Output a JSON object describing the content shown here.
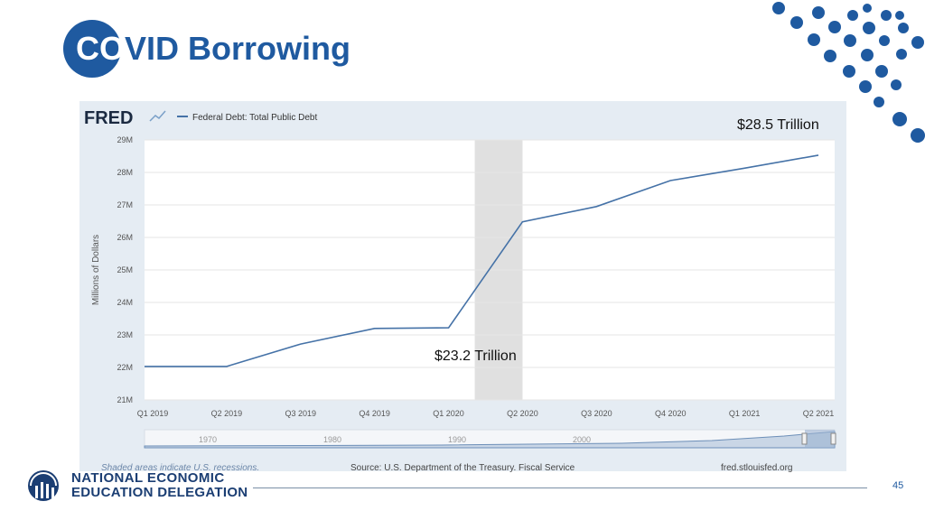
{
  "slide": {
    "title_prefix": "CO",
    "title_rest": "VID Borrowing",
    "annotation_high": "$28.5 Trillion",
    "annotation_low": "$23.2 Trillion",
    "org_line1": "NATIONAL ECONOMIC",
    "org_line2": "EDUCATION DELEGATION",
    "page_number": "45"
  },
  "colors": {
    "accent": "#1f5aa0",
    "series": "#4572a7",
    "recession": "#e0e0e0",
    "panel": "#e5ecf3"
  },
  "chart_data": {
    "type": "line",
    "brand": "FRED",
    "legend": "Federal Debt: Total Public Debt",
    "ylabel": "Millions of Dollars",
    "ylim": [
      21,
      29
    ],
    "y_ticks": [
      "21M",
      "22M",
      "23M",
      "24M",
      "25M",
      "26M",
      "27M",
      "28M",
      "29M"
    ],
    "categories": [
      "Q1 2019",
      "Q2 2019",
      "Q3 2019",
      "Q4 2019",
      "Q1 2020",
      "Q2 2020",
      "Q3 2020",
      "Q4 2020",
      "Q1 2021",
      "Q2 2021"
    ],
    "series": [
      {
        "name": "Federal Debt: Total Public Debt",
        "x": [
          "Q4 2018",
          "Q1 2019",
          "Q2 2019",
          "Q3 2019",
          "Q4 2019",
          "Q1 2020",
          "Q2 2020",
          "Q3 2020",
          "Q4 2020",
          "Q1 2021",
          "Q2 2021"
        ],
        "values": [
          22.03,
          22.03,
          22.03,
          22.72,
          23.2,
          23.22,
          26.48,
          26.95,
          27.75,
          28.13,
          28.53
        ]
      }
    ],
    "recession": {
      "from": "Q1 2020",
      "to": "Q2 2020"
    },
    "navigator_years": [
      "1970",
      "1980",
      "1990",
      "2000"
    ],
    "shaded_note": "Shaded areas indicate U.S. recessions.",
    "source": "Source: U.S. Department of the Treasury. Fiscal Service",
    "site": "fred.stlouisfed.org",
    "grid": true
  }
}
